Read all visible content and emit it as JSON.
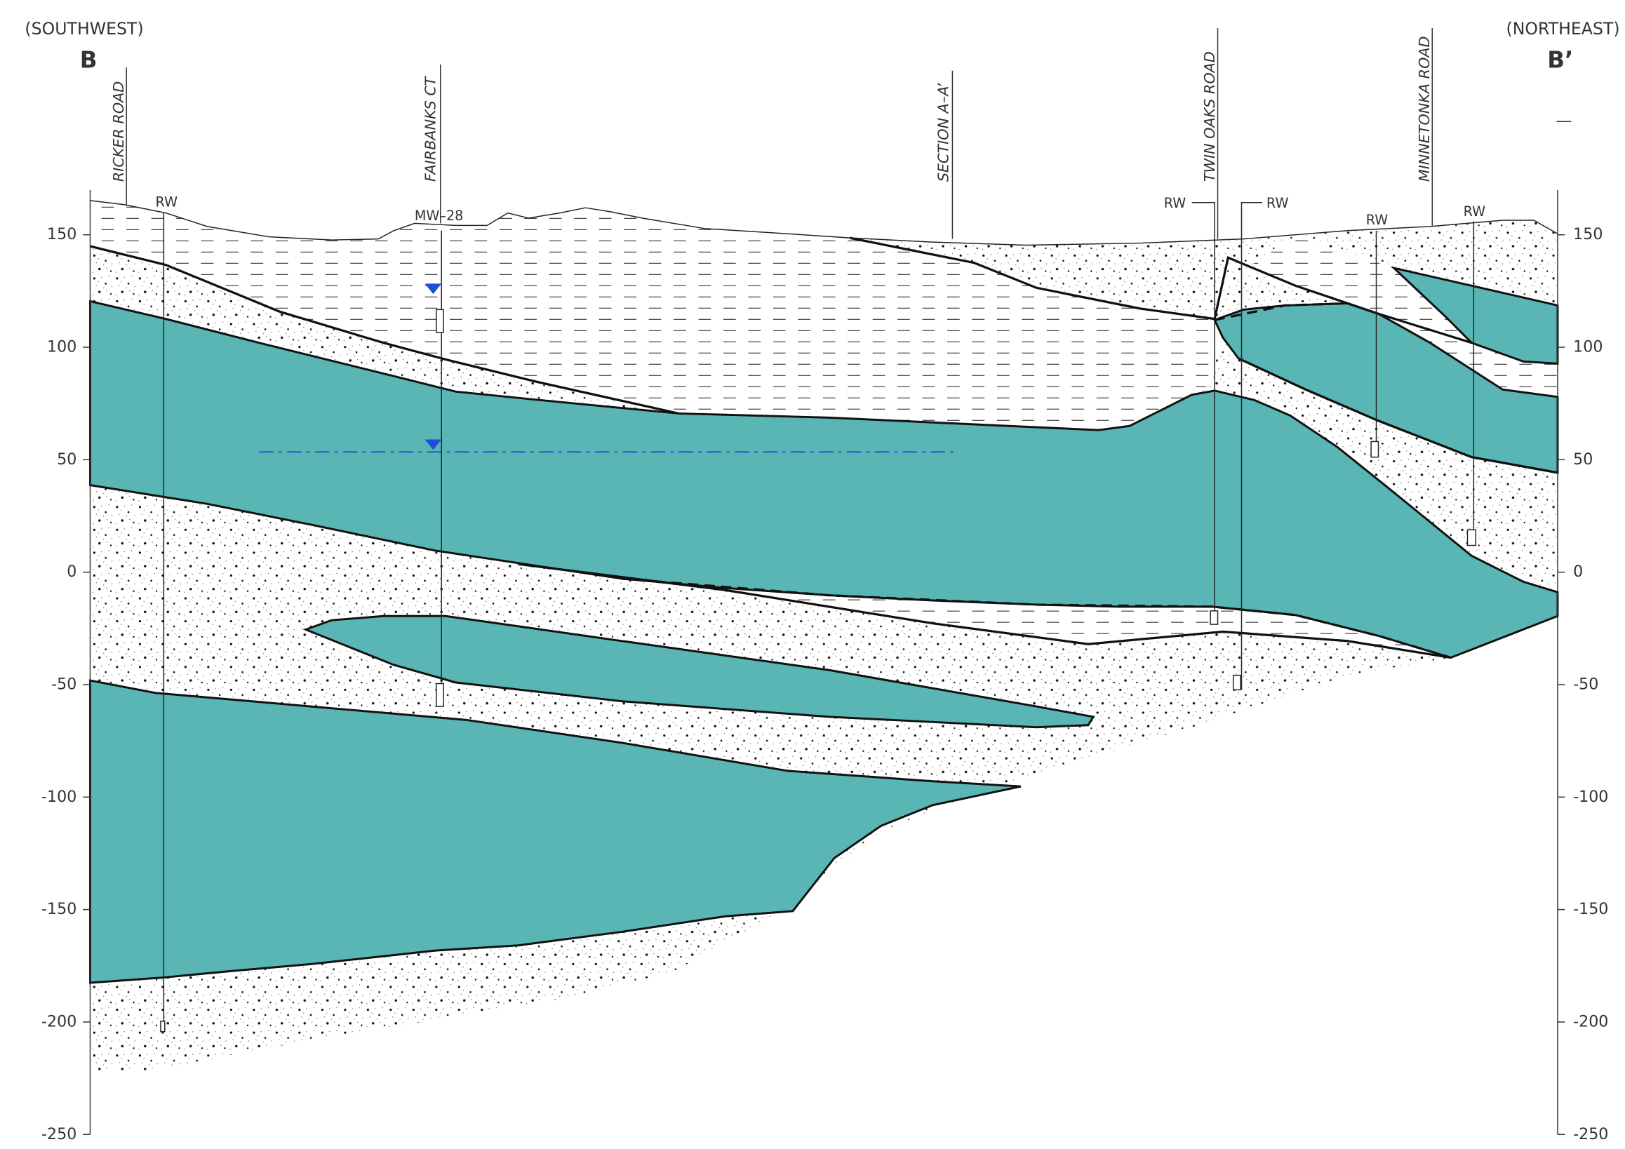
{
  "header": {
    "left_direction": "(SOUTHWEST)",
    "left_label": "B",
    "right_direction": "(NORTHEAST)",
    "right_label": "B’"
  },
  "streets": [
    {
      "label": "RICKER ROAD"
    },
    {
      "label": "FAIRBANKS CT"
    },
    {
      "label": "SECTION A–A’"
    },
    {
      "label": "TWIN OAKS ROAD"
    },
    {
      "label": "MINNETONKA ROAD"
    }
  ],
  "wells": [
    {
      "label": "RW"
    },
    {
      "label": "MW–28"
    },
    {
      "label": "RW"
    },
    {
      "label": "RW"
    },
    {
      "label": "RW"
    },
    {
      "label": "RW"
    }
  ],
  "elevation_axis": {
    "ticks": [
      150,
      100,
      50,
      0,
      -50,
      -100,
      -150,
      -200,
      -250
    ]
  }
}
